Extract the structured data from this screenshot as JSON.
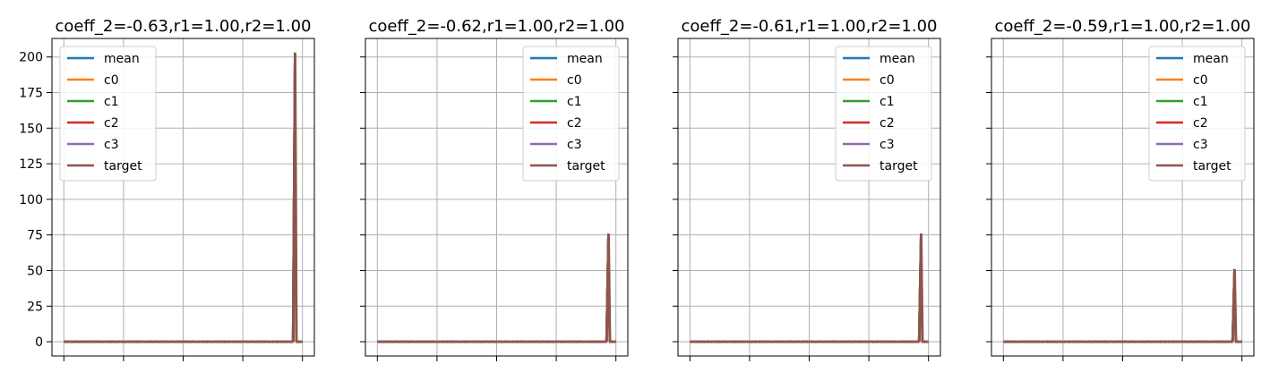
{
  "chart_data": [
    {
      "type": "line",
      "title": "coeff_2=-0.63,r1=1.00,r2=1.00",
      "ylim": [
        -10,
        213
      ],
      "yticks": [
        0,
        25,
        50,
        75,
        100,
        125,
        150,
        175,
        200
      ],
      "show_ytick_labels": true,
      "xlim": [
        -0.05,
        1.05
      ],
      "xticks": [
        0,
        0.25,
        0.5,
        0.75,
        1.0
      ],
      "grid": true,
      "legend_position": "top-left",
      "legend": [
        "mean",
        "c0",
        "c1",
        "c2",
        "c3",
        "target"
      ],
      "spike": {
        "x": 0.97,
        "value": 203
      },
      "baseline": 0
    },
    {
      "type": "line",
      "title": "coeff_2=-0.62,r1=1.00,r2=1.00",
      "ylim": [
        -10,
        213
      ],
      "yticks": [
        0,
        25,
        50,
        75,
        100,
        125,
        150,
        175,
        200
      ],
      "show_ytick_labels": false,
      "xlim": [
        -0.05,
        1.05
      ],
      "xticks": [
        0,
        0.25,
        0.5,
        0.75,
        1.0
      ],
      "grid": true,
      "legend_position": "top-right",
      "legend": [
        "mean",
        "c0",
        "c1",
        "c2",
        "c3",
        "target"
      ],
      "spike": {
        "x": 0.97,
        "value": 76
      },
      "baseline": 0
    },
    {
      "type": "line",
      "title": "coeff_2=-0.61,r1=1.00,r2=1.00",
      "ylim": [
        -10,
        213
      ],
      "yticks": [
        0,
        25,
        50,
        75,
        100,
        125,
        150,
        175,
        200
      ],
      "show_ytick_labels": false,
      "xlim": [
        -0.05,
        1.05
      ],
      "xticks": [
        0,
        0.25,
        0.5,
        0.75,
        1.0
      ],
      "grid": true,
      "legend_position": "top-right",
      "legend": [
        "mean",
        "c0",
        "c1",
        "c2",
        "c3",
        "target"
      ],
      "spike": {
        "x": 0.97,
        "value": 76
      },
      "baseline": 0
    },
    {
      "type": "line",
      "title": "coeff_2=-0.59,r1=1.00,r2=1.00",
      "ylim": [
        -10,
        213
      ],
      "yticks": [
        0,
        25,
        50,
        75,
        100,
        125,
        150,
        175,
        200
      ],
      "show_ytick_labels": false,
      "xlim": [
        -0.05,
        1.05
      ],
      "xticks": [
        0,
        0.25,
        0.5,
        0.75,
        1.0
      ],
      "grid": true,
      "legend_position": "top-right",
      "legend": [
        "mean",
        "c0",
        "c1",
        "c2",
        "c3",
        "target"
      ],
      "spike": {
        "x": 0.97,
        "value": 51
      },
      "baseline": 0
    }
  ],
  "colors": {
    "mean": "#1f77b4",
    "c0": "#ff7f0e",
    "c1": "#2ca02c",
    "c2": "#d62728",
    "c3": "#9467bd",
    "target": "#8c564b",
    "grid": "#b0b0b0",
    "axes": "#000000"
  }
}
